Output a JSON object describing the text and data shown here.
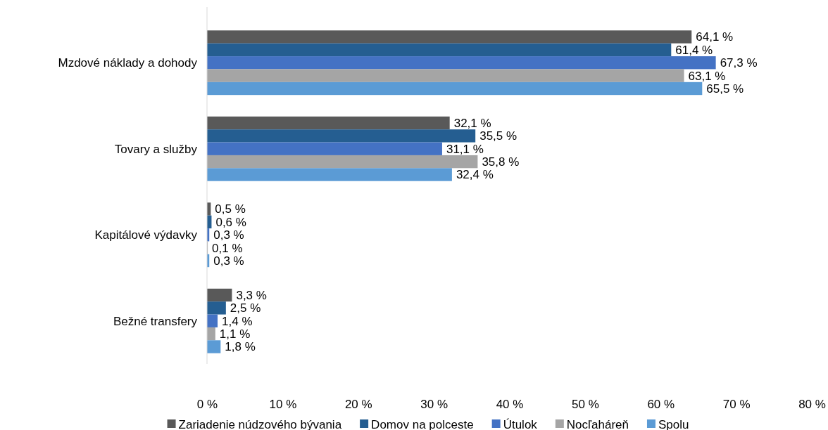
{
  "chart_data": {
    "type": "bar",
    "orientation": "horizontal",
    "categories": [
      "Mzdové náklady a dohody",
      "Tovary a služby",
      "Kapitálové výdavky",
      "Bežné transfery"
    ],
    "series": [
      {
        "name": "Zariadenie núdzového bývania",
        "color": "#595959",
        "values": [
          64.1,
          32.1,
          0.5,
          3.3
        ],
        "value_labels": [
          "64,1 %",
          "32,1 %",
          "0,5 %",
          "3,3 %"
        ]
      },
      {
        "name": "Domov na polceste",
        "color": "#255e91",
        "values": [
          61.4,
          35.5,
          0.6,
          2.5
        ],
        "value_labels": [
          "61,4 %",
          "35,5 %",
          "0,6 %",
          "2,5 %"
        ]
      },
      {
        "name": "Útulok",
        "color": "#4472c4",
        "values": [
          67.3,
          31.1,
          0.3,
          1.4
        ],
        "value_labels": [
          "67,3 %",
          "31,1 %",
          "0,3 %",
          "1,4 %"
        ]
      },
      {
        "name": "Nocľaháreň",
        "color": "#a5a5a5",
        "values": [
          63.1,
          35.8,
          0.1,
          1.1
        ],
        "value_labels": [
          "63,1 %",
          "35,8 %",
          "0,1 %",
          "1,1 %"
        ]
      },
      {
        "name": "Spolu",
        "color": "#5b9bd5",
        "values": [
          65.5,
          32.4,
          0.3,
          1.8
        ],
        "value_labels": [
          "65,5 %",
          "32,4 %",
          "0,3 %",
          "1,8 %"
        ]
      }
    ],
    "xlim": [
      0,
      80
    ],
    "xticks": [
      {
        "value": 0,
        "label": "0 %"
      },
      {
        "value": 10,
        "label": "10 %"
      },
      {
        "value": 20,
        "label": "20 %"
      },
      {
        "value": 30,
        "label": "30 %"
      },
      {
        "value": 40,
        "label": "40 %"
      },
      {
        "value": 50,
        "label": "50 %"
      },
      {
        "value": 60,
        "label": "60 %"
      },
      {
        "value": 70,
        "label": "70 %"
      },
      {
        "value": 80,
        "label": "80 %"
      }
    ],
    "legend": "bottom"
  }
}
